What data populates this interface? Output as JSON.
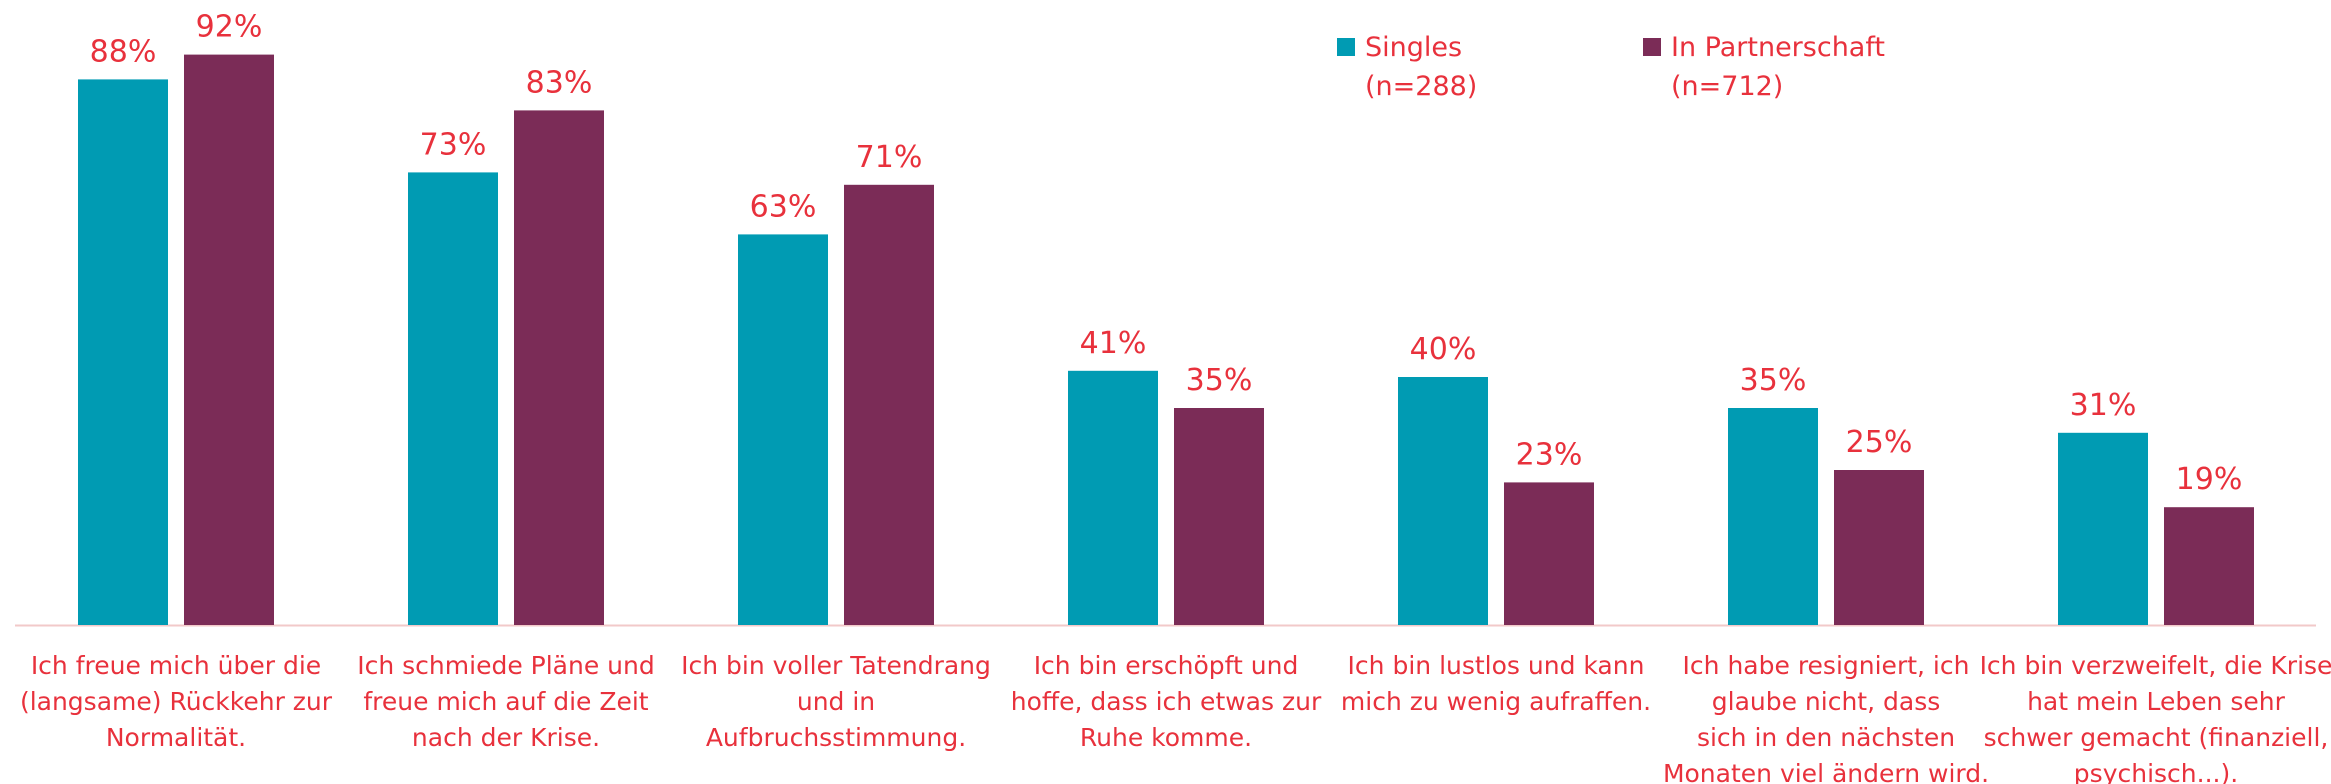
{
  "chart_data": {
    "type": "bar",
    "categories": [
      "Ich freue mich über die\n(langsame) Rückkehr zur\nNormalität.",
      "Ich schmiede Pläne und\nfreue mich auf die Zeit\nnach der Krise.",
      "Ich bin voller Tatendrang\nund in\nAufbruchsstimmung.",
      "Ich bin erschöpft und\nhoffe, dass ich etwas zur\nRuhe komme.",
      "Ich bin lustlos und kann\nmich zu wenig aufraffen.",
      "Ich habe resigniert, ich\nglaube nicht, dass\nsich in den nächsten\nMonaten viel ändern wird.",
      "Ich bin verzweifelt, die Krise\nhat mein Leben sehr\nschwer gemacht (finanziell,\npsychisch...)."
    ],
    "series": [
      {
        "name": "Singles\n(n=288)",
        "color": "#009bb3",
        "values": [
          88,
          73,
          63,
          41,
          40,
          35,
          31
        ],
        "value_labels": [
          "88%",
          "73%",
          "63%",
          "41%",
          "40%",
          "35%",
          "31%"
        ]
      },
      {
        "name": "In Partnerschaft\n(n=712)",
        "color": "#7b2c57",
        "values": [
          92,
          83,
          71,
          35,
          23,
          25,
          19
        ],
        "value_labels": [
          "92%",
          "83%",
          "71%",
          "35%",
          "23%",
          "25%",
          "19%"
        ]
      }
    ],
    "ylim": [
      0,
      100
    ],
    "legend": "top-right"
  }
}
